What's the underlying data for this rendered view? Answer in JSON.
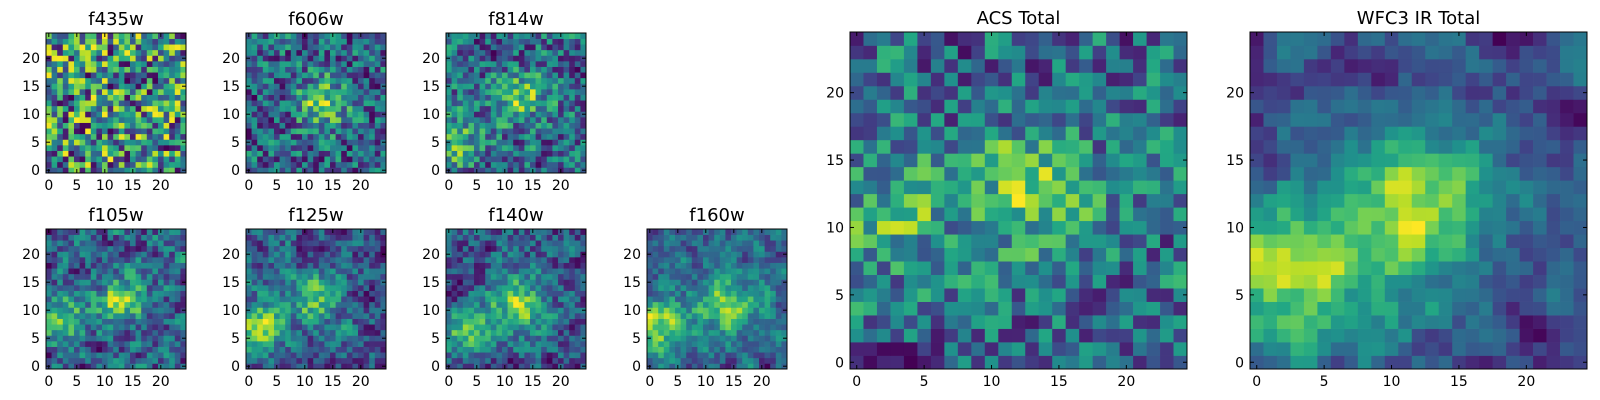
{
  "chart_data": [
    {
      "id": "f435w",
      "type": "heatmap",
      "title": "f435w",
      "grid": 25,
      "smooth": 0.0,
      "seed": 11,
      "blobs": [],
      "x_ticks": [
        "0",
        "5",
        "10",
        "15",
        "20"
      ],
      "y_ticks": [
        "0",
        "5",
        "10",
        "15",
        "20"
      ],
      "xlim": [
        0,
        24
      ],
      "ylim": [
        0,
        24
      ]
    },
    {
      "id": "f606w",
      "type": "heatmap",
      "title": "f606w",
      "grid": 25,
      "smooth": 0.2,
      "seed": 23,
      "blobs": [
        [
          13,
          12,
          3,
          0.6
        ]
      ],
      "x_ticks": [
        "0",
        "5",
        "10",
        "15",
        "20"
      ],
      "y_ticks": [
        "0",
        "5",
        "10",
        "15",
        "20"
      ],
      "xlim": [
        0,
        24
      ],
      "ylim": [
        0,
        24
      ]
    },
    {
      "id": "f814w",
      "type": "heatmap",
      "title": "f814w",
      "grid": 25,
      "smooth": 0.3,
      "seed": 37,
      "blobs": [
        [
          13,
          13,
          3,
          0.5
        ],
        [
          2,
          5,
          3,
          0.4
        ]
      ],
      "x_ticks": [
        "0",
        "5",
        "10",
        "15",
        "20"
      ],
      "y_ticks": [
        "0",
        "5",
        "10",
        "15",
        "20"
      ],
      "xlim": [
        0,
        24
      ],
      "ylim": [
        0,
        24
      ]
    },
    {
      "id": "f105w",
      "type": "heatmap",
      "title": "f105w",
      "grid": 25,
      "smooth": 0.5,
      "seed": 41,
      "blobs": [
        [
          13,
          12,
          3,
          0.6
        ],
        [
          2,
          8,
          3,
          0.5
        ]
      ],
      "x_ticks": [
        "0",
        "5",
        "10",
        "15",
        "20"
      ],
      "y_ticks": [
        "0",
        "5",
        "10",
        "15",
        "20"
      ],
      "xlim": [
        0,
        24
      ],
      "ylim": [
        0,
        24
      ]
    },
    {
      "id": "f125w",
      "type": "heatmap",
      "title": "f125w",
      "grid": 25,
      "smooth": 0.5,
      "seed": 53,
      "blobs": [
        [
          12,
          12,
          3,
          0.5
        ],
        [
          2,
          7,
          3,
          0.6
        ]
      ],
      "x_ticks": [
        "0",
        "5",
        "10",
        "15",
        "20"
      ],
      "y_ticks": [
        "0",
        "5",
        "10",
        "15",
        "20"
      ],
      "xlim": [
        0,
        24
      ],
      "ylim": [
        0,
        24
      ]
    },
    {
      "id": "f140w",
      "type": "heatmap",
      "title": "f140w",
      "grid": 25,
      "smooth": 0.5,
      "seed": 67,
      "blobs": [
        [
          12,
          11,
          4,
          0.6
        ],
        [
          2,
          6,
          3,
          0.5
        ]
      ],
      "x_ticks": [
        "0",
        "5",
        "10",
        "15",
        "20"
      ],
      "y_ticks": [
        "0",
        "5",
        "10",
        "15",
        "20"
      ],
      "xlim": [
        0,
        24
      ],
      "ylim": [
        0,
        24
      ]
    },
    {
      "id": "f160w",
      "type": "heatmap",
      "title": "f160w",
      "grid": 25,
      "smooth": 0.6,
      "seed": 79,
      "blobs": [
        [
          14,
          11,
          4,
          0.6
        ],
        [
          1,
          7,
          4,
          0.7
        ]
      ],
      "x_ticks": [
        "0",
        "5",
        "10",
        "15",
        "20"
      ],
      "y_ticks": [
        "0",
        "5",
        "10",
        "15",
        "20"
      ],
      "xlim": [
        0,
        24
      ],
      "ylim": [
        0,
        24
      ]
    },
    {
      "id": "acs_total",
      "type": "heatmap",
      "title": "ACS Total",
      "grid": 25,
      "smooth": 0.3,
      "seed": 97,
      "blobs": [
        [
          13,
          13,
          3,
          0.55
        ],
        [
          3,
          11,
          3,
          0.4
        ]
      ],
      "x_ticks": [
        "0",
        "5",
        "10",
        "15",
        "20"
      ],
      "y_ticks": [
        "0",
        "5",
        "10",
        "15",
        "20"
      ],
      "xlim": [
        0,
        24
      ],
      "ylim": [
        0,
        24
      ]
    },
    {
      "id": "wfc3_ir_total",
      "type": "heatmap",
      "title": "WFC3 IR Total",
      "grid": 25,
      "smooth": 0.7,
      "seed": 113,
      "blobs": [
        [
          12,
          12,
          4,
          0.8
        ],
        [
          1,
          7,
          4,
          0.8
        ],
        [
          8,
          5,
          4,
          0.3
        ]
      ],
      "x_ticks": [
        "0",
        "5",
        "10",
        "15",
        "20"
      ],
      "y_ticks": [
        "0",
        "5",
        "10",
        "15",
        "20"
      ],
      "xlim": [
        0,
        24
      ],
      "ylim": [
        0,
        24
      ]
    }
  ],
  "colormap": "viridis"
}
